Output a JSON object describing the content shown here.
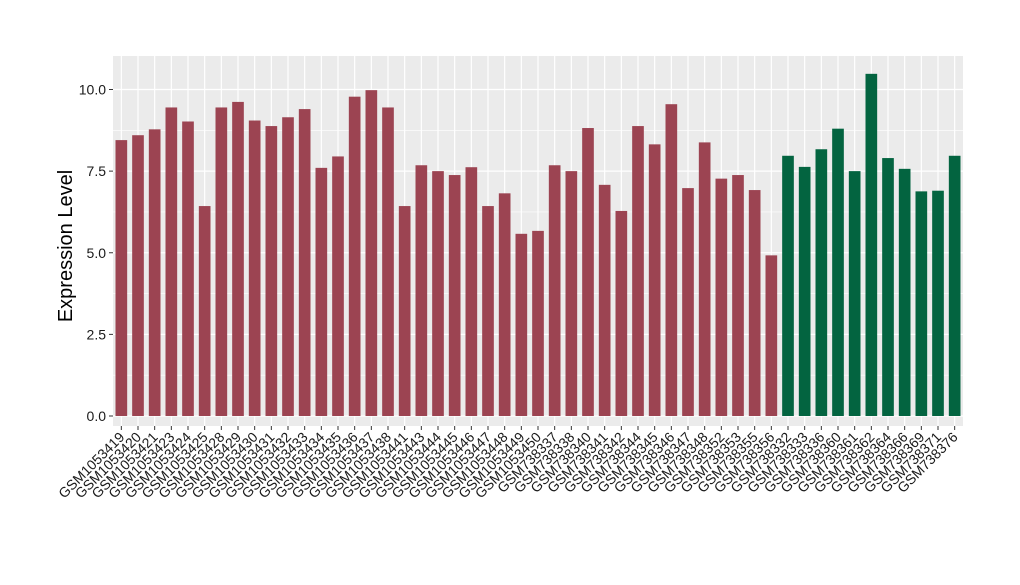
{
  "chart_data": {
    "type": "bar",
    "title": "",
    "xlabel": "",
    "ylabel": "Expression Level",
    "ylim": [
      0,
      10.75
    ],
    "y_ticks": [
      0.0,
      2.5,
      5.0,
      7.5,
      10.0
    ],
    "y_tick_labels": [
      "0.0",
      "2.5",
      "5.0",
      "7.5",
      "10.0"
    ],
    "grid": true,
    "legend": "none",
    "colors": {
      "group1": "#9c4452",
      "group2": "#036440",
      "panel_bg": "#ebebeb",
      "grid": "#ffffff"
    },
    "categories": [
      "GSM1053419",
      "GSM1053420",
      "GSM1053421",
      "GSM1053423",
      "GSM1053424",
      "GSM1053425",
      "GSM1053428",
      "GSM1053429",
      "GSM1053430",
      "GSM1053431",
      "GSM1053432",
      "GSM1053433",
      "GSM1053434",
      "GSM1053435",
      "GSM1053436",
      "GSM1053437",
      "GSM1053438",
      "GSM1053441",
      "GSM1053443",
      "GSM1053444",
      "GSM1053445",
      "GSM1053446",
      "GSM1053447",
      "GSM1053448",
      "GSM1053449",
      "GSM1053450",
      "GSM738337",
      "GSM738338",
      "GSM738340",
      "GSM738341",
      "GSM738342",
      "GSM738344",
      "GSM738345",
      "GSM738346",
      "GSM738347",
      "GSM738348",
      "GSM738352",
      "GSM738353",
      "GSM738355",
      "GSM738356",
      "GSM738332",
      "GSM738333",
      "GSM738336",
      "GSM738360",
      "GSM738361",
      "GSM738362",
      "GSM738364",
      "GSM738366",
      "GSM738369",
      "GSM738371",
      "GSM738376"
    ],
    "values": [
      8.45,
      8.6,
      8.78,
      9.45,
      9.02,
      6.43,
      9.45,
      9.62,
      9.05,
      8.88,
      9.15,
      9.4,
      7.6,
      7.95,
      9.78,
      9.98,
      9.45,
      6.43,
      7.68,
      7.5,
      7.38,
      7.62,
      6.43,
      6.82,
      5.58,
      5.67,
      7.68,
      7.5,
      8.82,
      7.08,
      6.28,
      8.88,
      8.32,
      9.55,
      6.98,
      8.38,
      7.27,
      7.38,
      6.92,
      4.92,
      7.97,
      7.63,
      8.17,
      8.8,
      7.5,
      10.48,
      7.9,
      7.57,
      6.88,
      6.9,
      7.97
    ],
    "groups": [
      1,
      1,
      1,
      1,
      1,
      1,
      1,
      1,
      1,
      1,
      1,
      1,
      1,
      1,
      1,
      1,
      1,
      1,
      1,
      1,
      1,
      1,
      1,
      1,
      1,
      1,
      1,
      1,
      1,
      1,
      1,
      1,
      1,
      1,
      1,
      1,
      1,
      1,
      1,
      1,
      2,
      2,
      2,
      2,
      2,
      2,
      2,
      2,
      2,
      2,
      2
    ]
  }
}
